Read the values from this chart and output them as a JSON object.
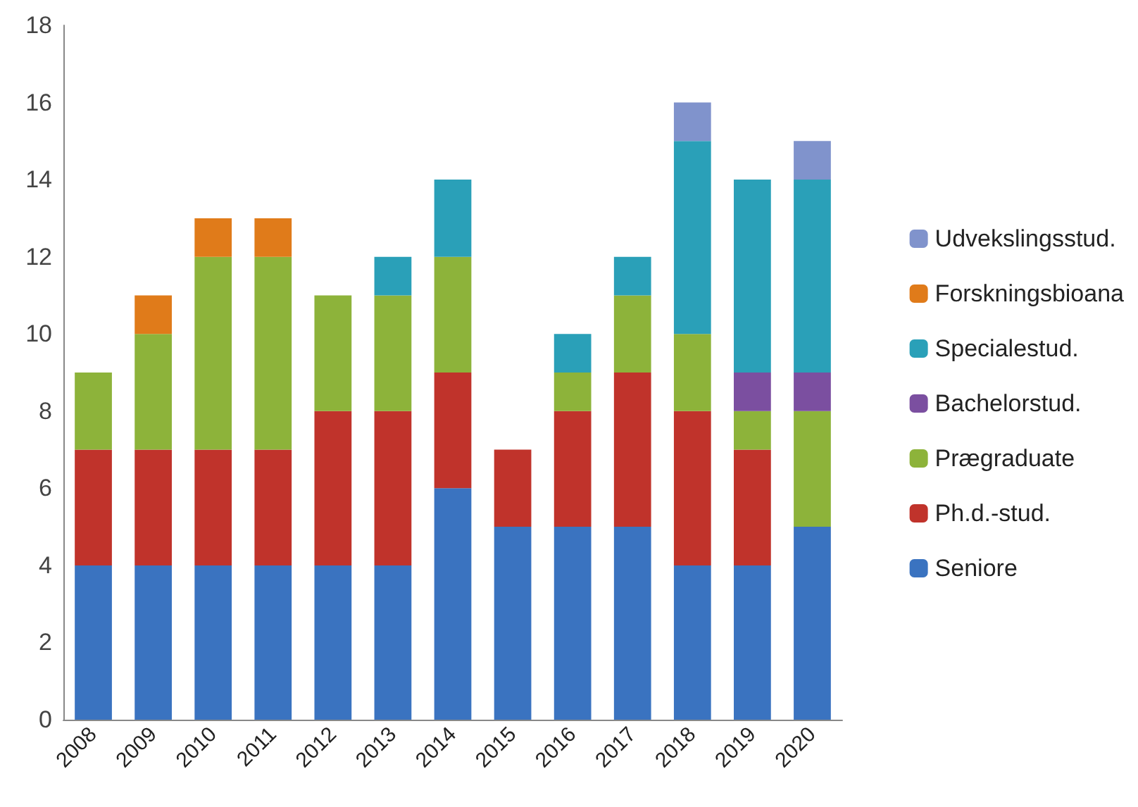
{
  "chart_data": {
    "type": "bar",
    "stacked": true,
    "categories": [
      "2008",
      "2009",
      "2010",
      "2011",
      "2012",
      "2013",
      "2014",
      "2015",
      "2016",
      "2017",
      "2018",
      "2019",
      "2020"
    ],
    "series": [
      {
        "name": "Seniore",
        "color": "#3a73c0",
        "values": [
          4,
          4,
          4,
          4,
          4,
          4,
          6,
          5,
          5,
          5,
          4,
          4,
          5
        ]
      },
      {
        "name": "Ph.d.-stud.",
        "color": "#c0332b",
        "values": [
          3,
          3,
          3,
          3,
          4,
          4,
          3,
          2,
          3,
          4,
          4,
          3,
          null
        ]
      },
      {
        "name": "Prægraduate",
        "color": "#8db33a",
        "values": [
          2,
          3,
          5,
          5,
          3,
          3,
          3,
          null,
          1,
          2,
          2,
          1,
          3
        ]
      },
      {
        "name": "Bachelorstud.",
        "color": "#7b4fa0",
        "values": [
          null,
          null,
          null,
          null,
          null,
          null,
          null,
          null,
          null,
          null,
          null,
          1,
          1
        ]
      },
      {
        "name": "Specialestud.",
        "color": "#2aa0b8",
        "values": [
          null,
          null,
          null,
          null,
          null,
          1,
          2,
          null,
          1,
          1,
          5,
          5,
          5
        ]
      },
      {
        "name": "Forskningsbioana",
        "color": "#e07b1a",
        "values": [
          null,
          1,
          1,
          1,
          null,
          null,
          null,
          null,
          null,
          null,
          null,
          null,
          null
        ]
      },
      {
        "name": "Udvekslingsstud.",
        "color": "#8093cc",
        "values": [
          null,
          null,
          null,
          null,
          null,
          null,
          null,
          null,
          null,
          null,
          1,
          null,
          1
        ]
      }
    ],
    "ylim": [
      0,
      18
    ],
    "yticks": [
      0,
      2,
      4,
      6,
      8,
      10,
      12,
      14,
      16,
      18
    ],
    "grid": false,
    "legend": "right"
  }
}
